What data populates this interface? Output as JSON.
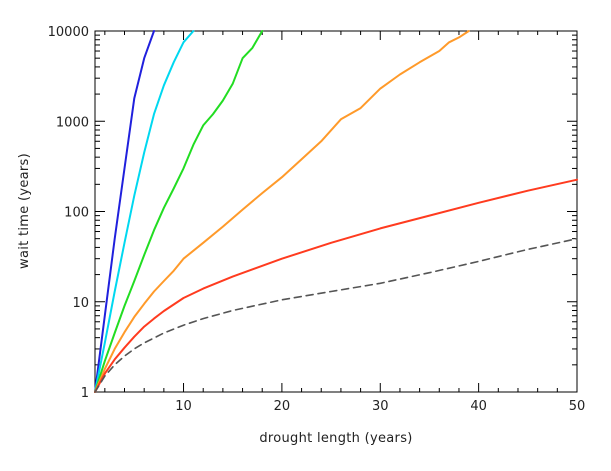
{
  "chart_data": {
    "type": "line",
    "title": "",
    "xlabel": "drought length (years)",
    "ylabel": "wait time (years)",
    "xlim": [
      1,
      50
    ],
    "ylim": [
      1,
      10000
    ],
    "yscale": "log",
    "x_tick_labels": [
      "10",
      "20",
      "30",
      "40",
      "50"
    ],
    "y_tick_labels": [
      "1",
      "10",
      "100",
      "1000",
      "10000"
    ],
    "grid": false,
    "series": [
      {
        "color": "#2020dd",
        "style": "solid",
        "points": [
          [
            1,
            1
          ],
          [
            2,
            7
          ],
          [
            3,
            50
          ],
          [
            4,
            300
          ],
          [
            5,
            1800
          ],
          [
            6,
            5000
          ],
          [
            7,
            10000
          ]
        ]
      },
      {
        "color": "#00d8f0",
        "style": "solid",
        "points": [
          [
            1,
            1
          ],
          [
            2,
            3.5
          ],
          [
            3,
            13
          ],
          [
            4,
            45
          ],
          [
            5,
            150
          ],
          [
            6,
            450
          ],
          [
            7,
            1200
          ],
          [
            8,
            2500
          ],
          [
            9,
            4500
          ],
          [
            10,
            7500
          ],
          [
            11,
            10000
          ]
        ]
      },
      {
        "color": "#22dd22",
        "style": "solid",
        "points": [
          [
            1,
            1
          ],
          [
            2,
            2.2
          ],
          [
            3,
            4.5
          ],
          [
            4,
            9
          ],
          [
            5,
            17
          ],
          [
            6,
            33
          ],
          [
            7,
            62
          ],
          [
            8,
            110
          ],
          [
            9,
            180
          ],
          [
            10,
            300
          ],
          [
            11,
            550
          ],
          [
            12,
            900
          ],
          [
            13,
            1200
          ],
          [
            14,
            1700
          ],
          [
            15,
            2600
          ],
          [
            16,
            5000
          ],
          [
            17,
            6500
          ],
          [
            18,
            10000
          ]
        ]
      },
      {
        "color": "#ff9a2a",
        "style": "solid",
        "points": [
          [
            1,
            1
          ],
          [
            2,
            1.8
          ],
          [
            3,
            3
          ],
          [
            4,
            4.6
          ],
          [
            5,
            6.8
          ],
          [
            6,
            9.5
          ],
          [
            7,
            13
          ],
          [
            8,
            17
          ],
          [
            9,
            22
          ],
          [
            10,
            30
          ],
          [
            12,
            45
          ],
          [
            14,
            68
          ],
          [
            16,
            105
          ],
          [
            18,
            160
          ],
          [
            20,
            240
          ],
          [
            22,
            380
          ],
          [
            24,
            600
          ],
          [
            26,
            1050
          ],
          [
            28,
            1400
          ],
          [
            30,
            2300
          ],
          [
            32,
            3300
          ],
          [
            34,
            4500
          ],
          [
            36,
            6000
          ],
          [
            37,
            7500
          ],
          [
            38,
            8500
          ],
          [
            39,
            10000
          ]
        ]
      },
      {
        "color": "#ff3b1f",
        "style": "solid",
        "points": [
          [
            1,
            1
          ],
          [
            2,
            1.6
          ],
          [
            3,
            2.3
          ],
          [
            4,
            3.1
          ],
          [
            5,
            4.1
          ],
          [
            6,
            5.3
          ],
          [
            7,
            6.5
          ],
          [
            8,
            7.9
          ],
          [
            10,
            11
          ],
          [
            12,
            14
          ],
          [
            15,
            19
          ],
          [
            20,
            30
          ],
          [
            25,
            45
          ],
          [
            30,
            65
          ],
          [
            35,
            90
          ],
          [
            40,
            125
          ],
          [
            45,
            170
          ],
          [
            50,
            225
          ]
        ]
      },
      {
        "color": "#555555",
        "style": "dashed",
        "points": [
          [
            1,
            1
          ],
          [
            2,
            1.5
          ],
          [
            3,
            2
          ],
          [
            4,
            2.5
          ],
          [
            5,
            3
          ],
          [
            6,
            3.5
          ],
          [
            8,
            4.5
          ],
          [
            10,
            5.5
          ],
          [
            12,
            6.5
          ],
          [
            15,
            8
          ],
          [
            20,
            10.5
          ],
          [
            25,
            13
          ],
          [
            30,
            16
          ],
          [
            35,
            21
          ],
          [
            40,
            28
          ],
          [
            45,
            38
          ],
          [
            50,
            50
          ]
        ]
      }
    ]
  }
}
